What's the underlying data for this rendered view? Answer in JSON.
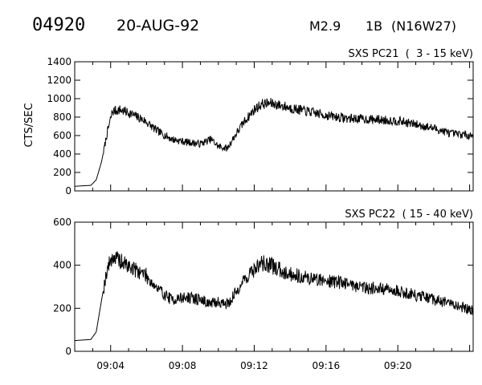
{
  "header": {
    "event_id": "04920",
    "date": "20-AUG-92",
    "flare_class": "M2.9",
    "optical_class": "1B",
    "location": "(N16W27)"
  },
  "chart_data": [
    {
      "type": "line",
      "title": "SXS PC21  (  3 - 15 keV)",
      "ylabel": "CTS/SEC",
      "xlabel": "",
      "ylim": [
        0,
        1400
      ],
      "yticks": [
        0,
        200,
        400,
        600,
        800,
        1000,
        1200,
        1400
      ],
      "xlim_minutes": [
        9.0333,
        9.4033
      ],
      "xtick_labels": [],
      "grid": false,
      "series": [
        {
          "x_time_hours": [
            9.0333,
            9.0483,
            9.0533,
            9.0583,
            9.0633,
            9.0683,
            9.075,
            9.085,
            9.0983,
            9.11,
            9.1233,
            9.1367,
            9.15,
            9.16,
            9.1667,
            9.175,
            9.18,
            9.19,
            9.2,
            9.2067,
            9.215,
            9.2233,
            9.2333,
            9.25,
            9.2667,
            9.2833,
            9.3,
            9.3167,
            9.3333,
            9.35,
            9.3667,
            9.3833,
            9.4033
          ],
          "values": [
            50,
            60,
            120,
            320,
            620,
            860,
            880,
            840,
            760,
            650,
            560,
            530,
            510,
            560,
            480,
            460,
            560,
            740,
            880,
            940,
            950,
            930,
            900,
            860,
            820,
            790,
            780,
            770,
            760,
            720,
            680,
            620,
            600
          ]
        }
      ]
    },
    {
      "type": "line",
      "title": "SXS PC22  ( 15 - 40 keV)",
      "ylabel": "",
      "xlabel": "",
      "ylim": [
        0,
        600
      ],
      "yticks": [
        0,
        200,
        400,
        600
      ],
      "xlim_minutes": [
        9.0333,
        9.4033
      ],
      "xtick_labels": [
        "09:04",
        "09:08",
        "09:12",
        "09:16",
        "09:20"
      ],
      "grid": false,
      "series": [
        {
          "x_time_hours": [
            9.0333,
            9.0483,
            9.0533,
            9.0583,
            9.0633,
            9.0683,
            9.075,
            9.085,
            9.0983,
            9.11,
            9.1233,
            9.1367,
            9.15,
            9.16,
            9.1667,
            9.175,
            9.18,
            9.19,
            9.2,
            9.2067,
            9.215,
            9.2233,
            9.2333,
            9.25,
            9.2667,
            9.2833,
            9.3,
            9.3167,
            9.3333,
            9.35,
            9.3667,
            9.3833,
            9.4033
          ],
          "values": [
            50,
            55,
            90,
            240,
            380,
            440,
            420,
            390,
            360,
            290,
            240,
            250,
            240,
            220,
            230,
            220,
            250,
            330,
            380,
            410,
            400,
            380,
            360,
            340,
            330,
            320,
            300,
            290,
            280,
            260,
            240,
            220,
            190
          ]
        }
      ]
    }
  ]
}
